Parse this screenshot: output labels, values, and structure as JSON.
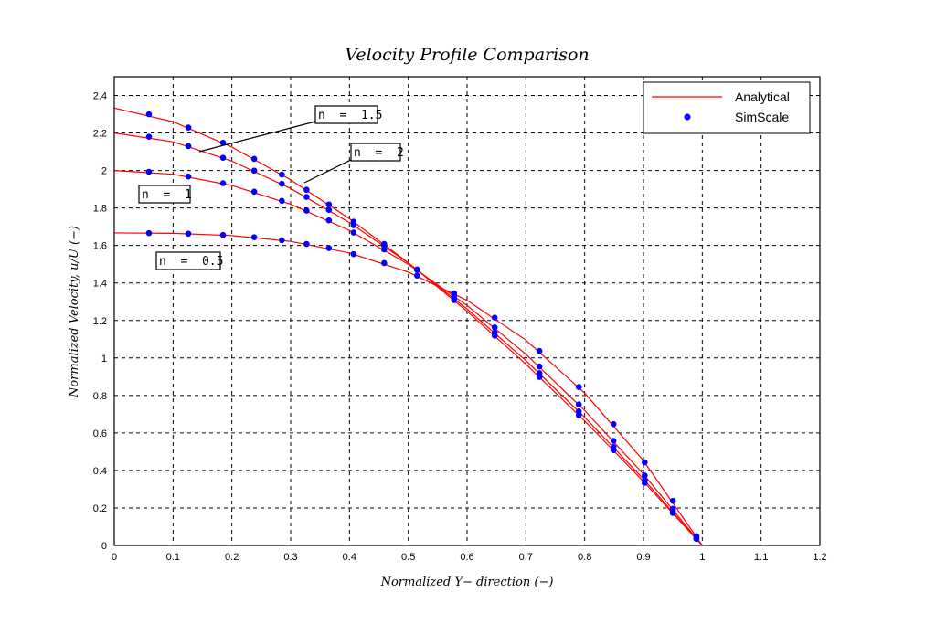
{
  "chart_data": {
    "type": "line",
    "title": "Velocity Profile Comparison",
    "xlabel": "Normalized Y− direction (−)",
    "ylabel": "Normalized Velocity, u/U  (−)",
    "xlim": [
      0,
      1.2
    ],
    "ylim": [
      0,
      2.5
    ],
    "xticks": [
      0,
      0.1,
      0.2,
      0.3,
      0.4,
      0.5,
      0.6,
      0.7,
      0.8,
      0.9,
      1,
      1.1,
      1.2
    ],
    "yticks": [
      0,
      0.2,
      0.4,
      0.6,
      0.8,
      1,
      1.2,
      1.4,
      1.6,
      1.8,
      2,
      2.2,
      2.4
    ],
    "grid": true,
    "legend_position": "top-right",
    "legend": [
      {
        "label": "Analytical",
        "style": "line",
        "color": "#ff0000"
      },
      {
        "label": "SimScale",
        "style": "marker",
        "color": "#0000ff"
      }
    ],
    "analytical_x": [
      0,
      0.1,
      0.2,
      0.3,
      0.4,
      0.5,
      0.6,
      0.7,
      0.8,
      0.9,
      1.0
    ],
    "simscale_x": [
      0.059,
      0.126,
      0.185,
      0.238,
      0.285,
      0.327,
      0.365,
      0.407,
      0.459,
      0.515,
      0.578,
      0.647,
      0.723,
      0.79,
      0.849,
      0.902,
      0.95,
      0.99
    ],
    "series": [
      {
        "label": "n  =  0.5",
        "analytical": [
          1.667,
          1.665,
          1.653,
          1.622,
          1.56,
          1.458,
          1.307,
          1.095,
          0.813,
          0.452,
          0
        ],
        "simscale": [
          1.666,
          1.663,
          1.656,
          1.644,
          1.628,
          1.608,
          1.586,
          1.554,
          1.506,
          1.439,
          1.345,
          1.215,
          1.037,
          0.845,
          0.647,
          0.443,
          0.238,
          0.05
        ]
      },
      {
        "label": "n  =  1",
        "analytical": [
          2.0,
          1.98,
          1.92,
          1.82,
          1.68,
          1.5,
          1.28,
          1.02,
          0.72,
          0.38,
          0
        ],
        "simscale": [
          1.993,
          1.968,
          1.932,
          1.887,
          1.838,
          1.786,
          1.734,
          1.669,
          1.579,
          1.47,
          1.332,
          1.163,
          0.955,
          0.752,
          0.558,
          0.373,
          0.195,
          0.04
        ]
      },
      {
        "label": "n  =  1.5",
        "analytical": [
          2.2,
          2.153,
          2.05,
          1.904,
          1.722,
          1.507,
          1.261,
          0.986,
          0.684,
          0.354,
          0
        ],
        "simscale": [
          2.18,
          2.13,
          2.068,
          1.999,
          1.929,
          1.859,
          1.79,
          1.708,
          1.599,
          1.472,
          1.318,
          1.135,
          0.919,
          0.715,
          0.525,
          0.347,
          0.18,
          0.037
        ]
      },
      {
        "label": "n  =  2",
        "analytical": [
          2.333,
          2.26,
          2.125,
          1.95,
          1.743,
          1.508,
          1.249,
          0.967,
          0.664,
          0.341,
          0
        ],
        "simscale": [
          2.3,
          2.229,
          2.148,
          2.062,
          1.978,
          1.897,
          1.819,
          1.727,
          1.608,
          1.471,
          1.308,
          1.119,
          0.899,
          0.695,
          0.508,
          0.334,
          0.173,
          0.035
        ]
      }
    ]
  }
}
